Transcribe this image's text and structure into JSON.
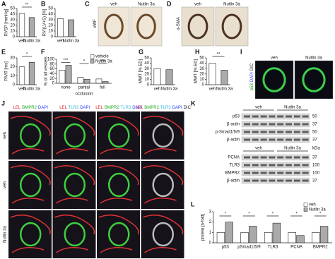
{
  "panel_letters": [
    "A",
    "B",
    "C",
    "D",
    "E",
    "F",
    "G",
    "H",
    "I",
    "J",
    "K",
    "L"
  ],
  "chart_data": [
    {
      "type": "bar",
      "ylabel": "RVSP [mmHg]",
      "categories": [
        "veh",
        "Nutlin 3a"
      ],
      "values": [
        41,
        34
      ],
      "colors": [
        "#ffffff",
        "#aaaaaa"
      ],
      "ylim": [
        0,
        50
      ],
      "yticks": [
        0,
        10,
        20,
        30,
        40,
        50
      ],
      "significance": "**"
    },
    {
      "type": "bar",
      "ylabel": "RV/(LV+S) [%]",
      "categories": [
        "veh",
        "Nutlin 3a"
      ],
      "values": [
        32,
        30
      ],
      "colors": [
        "#ffffff",
        "#aaaaaa"
      ],
      "ylim": [
        0,
        50
      ],
      "yticks": [
        0,
        10,
        20,
        30,
        40,
        50
      ]
    },
    {
      "type": "bar",
      "ylabel": "PAAT [ms]",
      "categories": [
        "veh",
        "Nutlin 3a"
      ],
      "values": [
        20,
        25
      ],
      "colors": [
        "#ffffff",
        "#aaaaaa"
      ],
      "ylim": [
        0,
        30
      ],
      "yticks": [
        0,
        10,
        20,
        30
      ],
      "significance": "*"
    },
    {
      "type": "bar",
      "ylabel": "% of all vessels",
      "xlabel": "occlusion",
      "categories": [
        "none",
        "partial",
        "full"
      ],
      "series": [
        {
          "name": "vehicle",
          "color": "#ffffff",
          "values": [
            55,
            25,
            18
          ]
        },
        {
          "name": "Nutlin 3a",
          "color": "#aaaaaa",
          "values": [
            75,
            17,
            7
          ]
        }
      ],
      "ylim": [
        0,
        100
      ],
      "yticks": [
        0,
        20,
        40,
        60,
        80,
        100
      ],
      "significance": [
        "***",
        "*",
        "***"
      ],
      "legend": "upper right"
    },
    {
      "type": "bar",
      "ylabel": "MWT [% ED]",
      "categories": [
        "veh",
        "Nutlin 3a"
      ],
      "values": [
        30,
        28
      ],
      "colors": [
        "#ffffff",
        "#aaaaaa"
      ],
      "ylim": [
        0,
        50
      ],
      "yticks": [
        0,
        10,
        20,
        30,
        40,
        50
      ]
    },
    {
      "type": "bar",
      "ylabel": "MWT [% ED]",
      "categories": [
        "veh",
        "Nutlin 3a"
      ],
      "values": [
        40,
        27
      ],
      "colors": [
        "#ffffff",
        "#aaaaaa"
      ],
      "ylim": [
        0,
        50
      ],
      "yticks": [
        0,
        10,
        20,
        30,
        40,
        50
      ],
      "significance": "**"
    },
    {
      "type": "bar",
      "ylabel": "protein [n-fold]",
      "categories": [
        "p53",
        "pSmad1/5/9",
        "TLR3",
        "PCNA",
        "BMPR2"
      ],
      "series": [
        {
          "name": "veh",
          "color": "#ffffff",
          "values": [
            1,
            1,
            1,
            1,
            1
          ]
        },
        {
          "name": "Nutlin 3a",
          "color": "#aaaaaa",
          "values": [
            2.0,
            1.6,
            1.9,
            0.7,
            1.6
          ]
        }
      ],
      "ylim": [
        0,
        3
      ],
      "yticks": [
        0,
        1,
        2,
        3
      ],
      "significance": [
        "*",
        "*",
        "*",
        "*",
        "*"
      ],
      "legend": "upper right"
    }
  ],
  "image_panels": [
    {
      "marker": [
        {
          "text": "vWF",
          "color": "#111111"
        }
      ],
      "columns": [
        "veh",
        "Nutlin 3a"
      ]
    },
    {
      "marker": [
        {
          "text": "α-SMA",
          "color": "#111111"
        }
      ],
      "columns": [
        "veh",
        "Nutlin 3a"
      ]
    },
    {
      "marker": [
        {
          "text": "p53",
          "color": "#22aa22"
        },
        {
          "text": "DAPI",
          "color": "#3344ff"
        },
        {
          "text": "DIC",
          "color": "#222222"
        }
      ],
      "columns": [
        "veh",
        "Nutlin 3a"
      ]
    }
  ],
  "fluorescence_grid": {
    "columns": [
      [
        {
          "text": "LEL",
          "color": "#dd2222"
        },
        {
          "text": "BMPR2",
          "color": "#22aa22"
        },
        {
          "text": "DAPI",
          "color": "#3344ff"
        }
      ],
      [
        {
          "text": "LEL",
          "color": "#dd2222"
        },
        {
          "text": "TLR3",
          "color": "#33bbdd"
        },
        {
          "text": "DAPI",
          "color": "#3344ff"
        }
      ],
      [
        {
          "text": "LEL",
          "color": "#dd2222"
        },
        {
          "text": "BMPR2",
          "color": "#22aa22"
        },
        {
          "text": "TLR3",
          "color": "#33bbdd"
        },
        {
          "text": "DAPI",
          "color": "#3344ff"
        }
      ],
      [
        {
          "text": "LEL",
          "color": "#dd2222"
        },
        {
          "text": "BMPR2",
          "color": "#22aa22"
        },
        {
          "text": "TLR3",
          "color": "#33bbdd"
        },
        {
          "text": "DAPI",
          "color": "#3344ff"
        },
        {
          "text": "DIC",
          "color": "#222222"
        }
      ]
    ],
    "rows": [
      "veh",
      "veh",
      "Nutlin 3a"
    ]
  },
  "western_blot": {
    "top": {
      "groups": [
        "veh",
        "Nutlin 3a"
      ],
      "blots": [
        {
          "label": "p53",
          "kda": 50
        },
        {
          "label": "β-actin",
          "kda": 37
        },
        {
          "label": "p-Smad1/5/9",
          "kda": 50
        },
        {
          "label": "β-actin",
          "kda": 37
        }
      ]
    },
    "bottom": {
      "groups": [
        "veh",
        "Nutlin 3a"
      ],
      "unit": "kDa",
      "blots": [
        {
          "label": "PCNA",
          "kda": 37
        },
        {
          "label": "TLR3",
          "kda": 100
        },
        {
          "label": "BMPR2",
          "kda": 100
        },
        {
          "label": "β-actin",
          "kda": 37
        }
      ]
    }
  }
}
